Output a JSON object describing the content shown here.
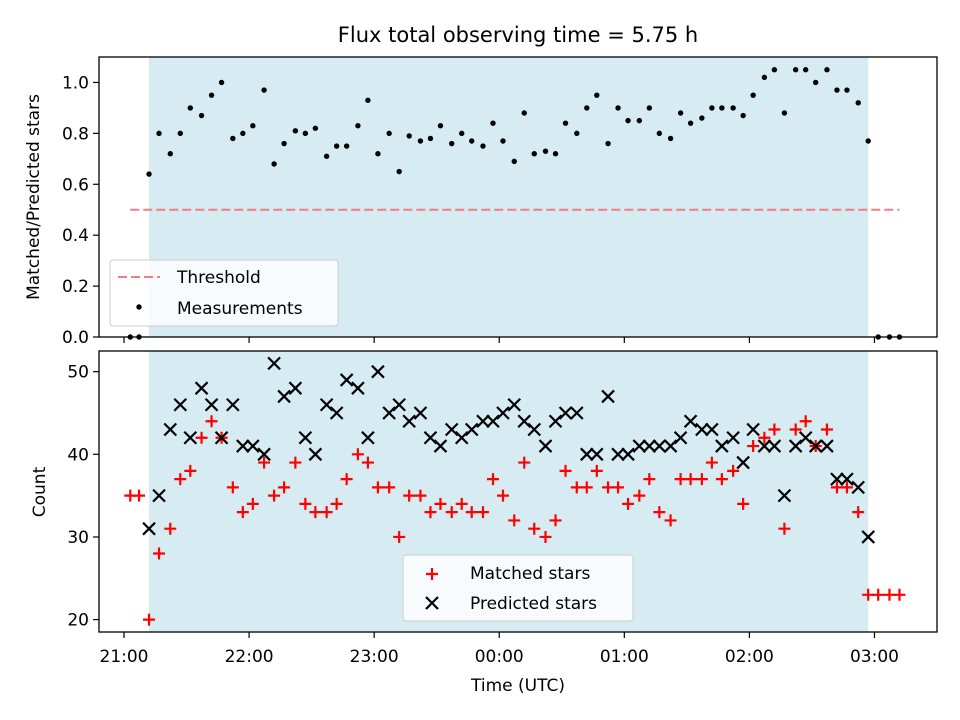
{
  "title": "Flux total observing time = 5.75 h",
  "chart_data": [
    {
      "type": "scatter",
      "ylabel": "Matched/Predicted stars",
      "ylim": [
        0,
        1.1
      ],
      "yticks": [
        0.0,
        0.2,
        0.4,
        0.6,
        0.8,
        1.0
      ],
      "ytick_labels": [
        "0.0",
        "0.2",
        "0.4",
        "0.6",
        "0.8",
        "1.0"
      ],
      "xlim_hours": [
        20.8,
        27.5
      ],
      "observing_window_hours": [
        21.2,
        26.95
      ],
      "shade_color": "#add8e6",
      "legend_location": "lower-left",
      "threshold": {
        "name": "Threshold",
        "value": 0.5,
        "x_range": [
          21.05,
          27.2
        ],
        "color": "#f08080",
        "style": "dashed"
      },
      "series": [
        {
          "name": "Measurements",
          "color": "#000000",
          "marker": "dot",
          "x": [
            21.05,
            21.12,
            21.2,
            21.28,
            21.37,
            21.45,
            21.53,
            21.62,
            21.7,
            21.78,
            21.87,
            21.95,
            22.03,
            22.12,
            22.2,
            22.28,
            22.37,
            22.45,
            22.53,
            22.62,
            22.7,
            22.78,
            22.87,
            22.95,
            23.03,
            23.12,
            23.2,
            23.28,
            23.37,
            23.45,
            23.53,
            23.62,
            23.7,
            23.78,
            23.87,
            23.95,
            24.03,
            24.12,
            24.2,
            24.28,
            24.37,
            24.45,
            24.53,
            24.62,
            24.7,
            24.78,
            24.87,
            24.95,
            25.03,
            25.12,
            25.2,
            25.28,
            25.37,
            25.45,
            25.53,
            25.62,
            25.7,
            25.78,
            25.87,
            25.95,
            26.03,
            26.12,
            26.2,
            26.28,
            26.37,
            26.45,
            26.53,
            26.62,
            26.7,
            26.78,
            26.87,
            26.95,
            27.03,
            27.12,
            27.2
          ],
          "y": [
            0,
            0,
            0.64,
            0.8,
            0.72,
            0.8,
            0.9,
            0.87,
            0.95,
            1.0,
            0.78,
            0.8,
            0.83,
            0.97,
            0.68,
            0.76,
            0.81,
            0.8,
            0.82,
            0.71,
            0.75,
            0.75,
            0.83,
            0.93,
            0.72,
            0.8,
            0.65,
            0.79,
            0.77,
            0.78,
            0.83,
            0.76,
            0.8,
            0.77,
            0.75,
            0.84,
            0.77,
            0.69,
            0.88,
            0.72,
            0.73,
            0.72,
            0.84,
            0.8,
            0.9,
            0.95,
            0.76,
            0.9,
            0.85,
            0.85,
            0.9,
            0.8,
            0.78,
            0.88,
            0.84,
            0.86,
            0.9,
            0.9,
            0.9,
            0.87,
            0.95,
            1.02,
            1.05,
            0.88,
            1.05,
            1.05,
            1.0,
            1.05,
            0.97,
            0.97,
            0.92,
            0.77,
            0,
            0,
            0
          ]
        }
      ]
    },
    {
      "type": "scatter",
      "ylabel": "Count",
      "xlabel": "Time (UTC)",
      "ylim": [
        18.5,
        52.5
      ],
      "yticks": [
        20,
        30,
        40,
        50
      ],
      "ytick_labels": [
        "20",
        "30",
        "40",
        "50"
      ],
      "xlim_hours": [
        20.8,
        27.5
      ],
      "xticks_hours": [
        21,
        22,
        23,
        24,
        25,
        26,
        27
      ],
      "xtick_labels": [
        "21:00",
        "22:00",
        "23:00",
        "00:00",
        "01:00",
        "02:00",
        "03:00"
      ],
      "observing_window_hours": [
        21.2,
        26.95
      ],
      "shade_color": "#add8e6",
      "legend_location": "lower-center",
      "series": [
        {
          "name": "Matched stars",
          "color": "#ff0000",
          "marker": "plus",
          "x": [
            21.05,
            21.12,
            21.2,
            21.28,
            21.37,
            21.45,
            21.53,
            21.62,
            21.7,
            21.78,
            21.87,
            21.95,
            22.03,
            22.12,
            22.2,
            22.28,
            22.37,
            22.45,
            22.53,
            22.62,
            22.7,
            22.78,
            22.87,
            22.95,
            23.03,
            23.12,
            23.2,
            23.28,
            23.37,
            23.45,
            23.53,
            23.62,
            23.7,
            23.78,
            23.87,
            23.95,
            24.03,
            24.12,
            24.2,
            24.28,
            24.37,
            24.45,
            24.53,
            24.62,
            24.7,
            24.78,
            24.87,
            24.95,
            25.03,
            25.12,
            25.2,
            25.28,
            25.37,
            25.45,
            25.53,
            25.62,
            25.7,
            25.78,
            25.87,
            25.95,
            26.03,
            26.12,
            26.2,
            26.28,
            26.37,
            26.45,
            26.53,
            26.62,
            26.7,
            26.78,
            26.87,
            26.95,
            27.03,
            27.12,
            27.2
          ],
          "y": [
            35,
            35,
            20,
            28,
            31,
            37,
            38,
            42,
            44,
            42,
            36,
            33,
            34,
            39,
            35,
            36,
            39,
            34,
            33,
            33,
            34,
            37,
            40,
            39,
            36,
            36,
            30,
            35,
            35,
            33,
            34,
            33,
            34,
            33,
            33,
            37,
            35,
            32,
            39,
            31,
            30,
            32,
            38,
            36,
            36,
            38,
            36,
            36,
            34,
            35,
            37,
            33,
            32,
            37,
            37,
            37,
            39,
            37,
            38,
            34,
            41,
            42,
            43,
            31,
            43,
            44,
            41,
            43,
            36,
            36,
            33,
            23,
            23,
            23,
            23
          ]
        },
        {
          "name": "Predicted stars",
          "color": "#000000",
          "marker": "x",
          "x": [
            21.2,
            21.28,
            21.37,
            21.45,
            21.53,
            21.62,
            21.7,
            21.78,
            21.87,
            21.95,
            22.03,
            22.12,
            22.2,
            22.28,
            22.37,
            22.45,
            22.53,
            22.62,
            22.7,
            22.78,
            22.87,
            22.95,
            23.03,
            23.12,
            23.2,
            23.28,
            23.37,
            23.45,
            23.53,
            23.62,
            23.7,
            23.78,
            23.87,
            23.95,
            24.03,
            24.12,
            24.2,
            24.28,
            24.37,
            24.45,
            24.53,
            24.62,
            24.7,
            24.78,
            24.87,
            24.95,
            25.03,
            25.12,
            25.2,
            25.28,
            25.37,
            25.45,
            25.53,
            25.62,
            25.7,
            25.78,
            25.87,
            25.95,
            26.03,
            26.12,
            26.2,
            26.28,
            26.37,
            26.45,
            26.53,
            26.62,
            26.7,
            26.78,
            26.87,
            26.95
          ],
          "y": [
            31,
            35,
            43,
            46,
            42,
            48,
            46,
            42,
            46,
            41,
            41,
            40,
            51,
            47,
            48,
            42,
            40,
            46,
            45,
            49,
            48,
            42,
            50,
            45,
            46,
            44,
            45,
            42,
            41,
            43,
            42,
            43,
            44,
            44,
            45,
            46,
            44,
            43,
            41,
            44,
            45,
            45,
            40,
            40,
            47,
            40,
            40,
            41,
            41,
            41,
            41,
            42,
            44,
            43,
            43,
            41,
            42,
            39,
            43,
            41,
            41,
            35,
            41,
            42,
            41,
            41,
            37,
            37,
            36,
            30
          ]
        }
      ]
    }
  ]
}
